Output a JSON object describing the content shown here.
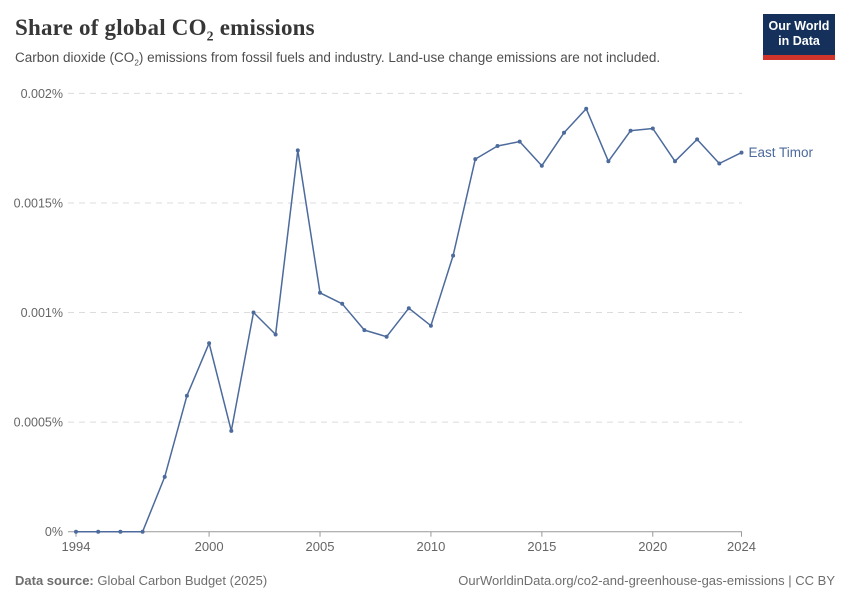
{
  "header": {
    "title": "Share of global CO₂ emissions",
    "title_parts": {
      "pre": "Share of global CO",
      "sub": "2",
      "post": " emissions"
    },
    "subtitle": "Carbon dioxide (CO₂) emissions from fossil fuels and industry. Land-use change emissions are not included.",
    "subtitle_parts": {
      "pre": "Carbon dioxide (CO",
      "sub": "2",
      "post": ") emissions from fossil fuels and industry. Land-use change emissions are not included."
    }
  },
  "logo": {
    "line1": "Our World",
    "line2": "in Data",
    "bg_color": "#15315b",
    "bar_color": "#d1342a"
  },
  "chart_data": {
    "type": "line",
    "title": "Share of global CO₂ emissions",
    "xlabel": "",
    "ylabel": "",
    "xlim": [
      1994,
      2024
    ],
    "ylim": [
      0,
      0.002
    ],
    "grid": "horizontal-dashed",
    "legend_position": "end-of-line-label",
    "x_ticks": [
      1994,
      2000,
      2005,
      2010,
      2015,
      2020,
      2024
    ],
    "y_ticks": [
      {
        "value": 0,
        "label": "0%"
      },
      {
        "value": 0.0005,
        "label": "0.0005%"
      },
      {
        "value": 0.001,
        "label": "0.001%"
      },
      {
        "value": 0.0015,
        "label": "0.0015%"
      },
      {
        "value": 0.002,
        "label": "0.002%"
      }
    ],
    "colors": {
      "line": "#4c6a9c",
      "grid": "#dcdcdc",
      "axis": "#999999",
      "tick_text": "#666666"
    },
    "series": [
      {
        "name": "East Timor",
        "color": "#4c6a9c",
        "x": [
          1994,
          1995,
          1996,
          1997,
          1998,
          1999,
          2000,
          2001,
          2002,
          2003,
          2004,
          2005,
          2006,
          2007,
          2008,
          2009,
          2010,
          2011,
          2012,
          2013,
          2014,
          2015,
          2016,
          2017,
          2018,
          2019,
          2020,
          2021,
          2022,
          2023,
          2024
        ],
        "values": [
          0,
          0,
          0,
          0,
          0.00025,
          0.00062,
          0.00086,
          0.00046,
          0.001,
          0.0009,
          0.00174,
          0.00109,
          0.00104,
          0.00092,
          0.00089,
          0.00102,
          0.00094,
          0.00126,
          0.0017,
          0.00176,
          0.00178,
          0.00167,
          0.00182,
          0.00193,
          0.00169,
          0.00183,
          0.00184,
          0.00169,
          0.00179,
          0.00168,
          0.00173
        ]
      }
    ]
  },
  "footer": {
    "source_label": "Data source:",
    "source_value": "Global Carbon Budget (2025)",
    "citation": "OurWorldinData.org/co2-and-greenhouse-gas-emissions | CC BY"
  }
}
